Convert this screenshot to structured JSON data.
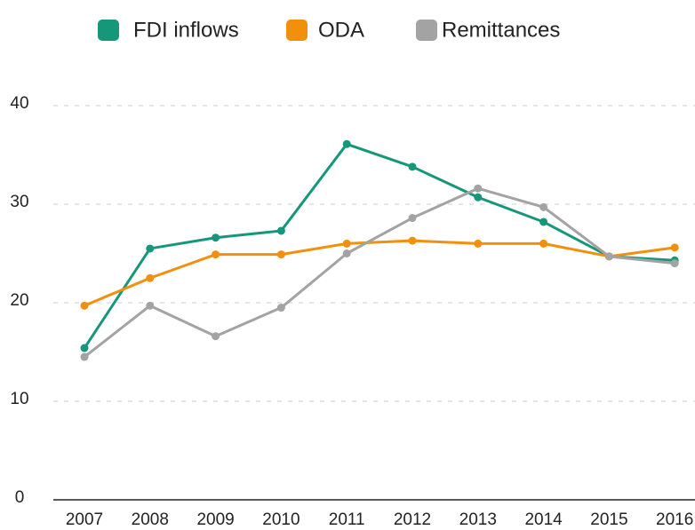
{
  "chart_data": {
    "type": "line",
    "categories": [
      "2007",
      "2008",
      "2009",
      "2010",
      "2011",
      "2012",
      "2013",
      "2014",
      "2015",
      "2016"
    ],
    "series": [
      {
        "name": "FDI inflows",
        "color": "#17977a",
        "values": [
          15.4,
          25.5,
          26.6,
          27.3,
          36.1,
          33.8,
          30.7,
          28.2,
          24.7,
          24.3
        ]
      },
      {
        "name": "ODA",
        "color": "#f0900c",
        "values": [
          19.7,
          22.5,
          24.9,
          24.9,
          26.0,
          26.3,
          26.0,
          26.0,
          24.7,
          25.6
        ]
      },
      {
        "name": "Remittances",
        "color": "#a3a3a3",
        "values": [
          14.5,
          19.7,
          16.6,
          19.5,
          25.0,
          28.6,
          31.6,
          29.7,
          24.7,
          24.0
        ]
      }
    ],
    "ylim": [
      0,
      40
    ],
    "yticks": [
      0,
      10,
      20,
      30,
      40
    ],
    "grid": true
  }
}
